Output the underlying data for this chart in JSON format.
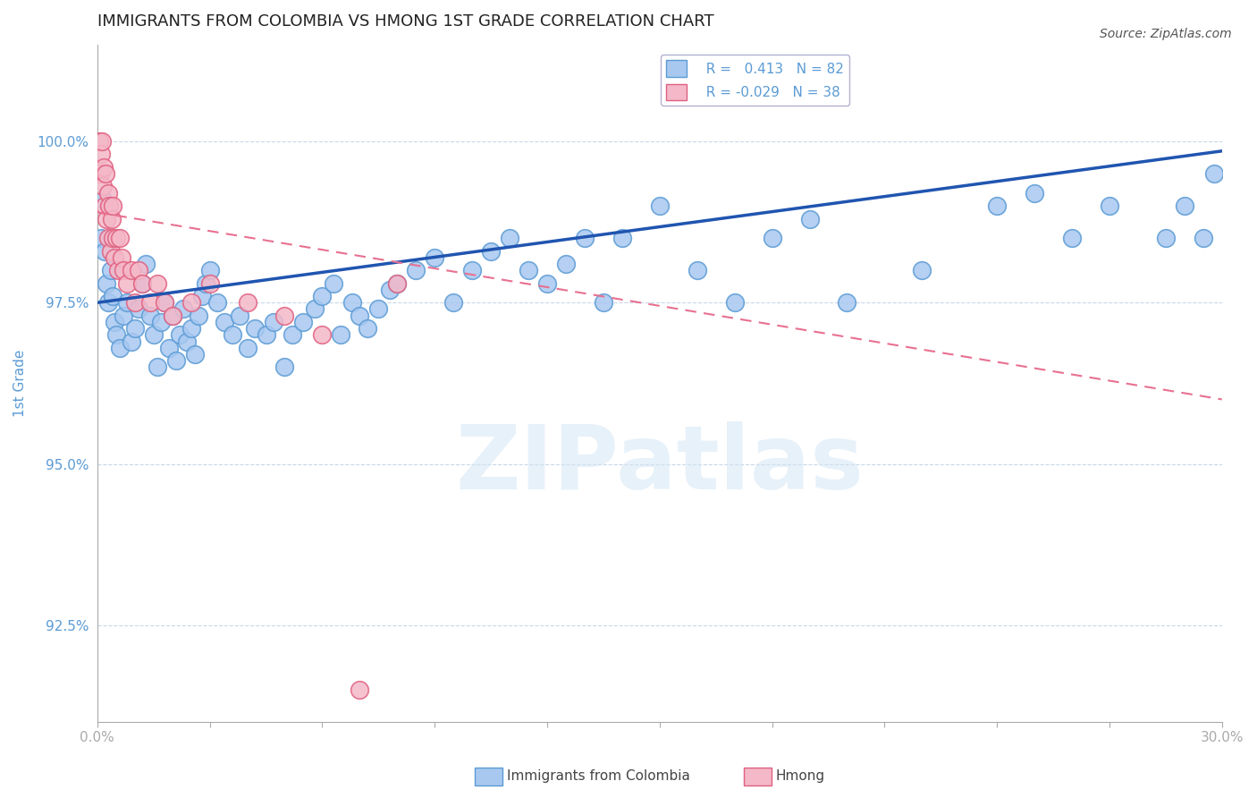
{
  "title": "IMMIGRANTS FROM COLOMBIA VS HMONG 1ST GRADE CORRELATION CHART",
  "source_text": "Source: ZipAtlas.com",
  "ylabel": "1st Grade",
  "xlim": [
    0.0,
    30.0
  ],
  "ylim": [
    91.0,
    101.5
  ],
  "yticks": [
    92.5,
    95.0,
    97.5,
    100.0
  ],
  "ytick_labels": [
    "92.5%",
    "95.0%",
    "97.5%",
    "100.0%"
  ],
  "xticks": [
    0.0,
    3.0,
    6.0,
    9.0,
    12.0,
    15.0,
    18.0,
    21.0,
    24.0,
    27.0,
    30.0
  ],
  "colombia_color": "#a8c8f0",
  "colombia_edge_color": "#5b9bd5",
  "hmong_color": "#f4b8c8",
  "hmong_edge_color": "#e06080",
  "trend_colombia_color": "#2055b0",
  "trend_hmong_color": "#e87090",
  "colombia_R": 0.413,
  "colombia_N": 82,
  "hmong_R": -0.029,
  "hmong_N": 38,
  "colombia_x": [
    0.1,
    0.15,
    0.2,
    0.25,
    0.3,
    0.35,
    0.4,
    0.45,
    0.5,
    0.6,
    0.7,
    0.8,
    0.9,
    1.0,
    1.1,
    1.2,
    1.3,
    1.4,
    1.5,
    1.6,
    1.7,
    1.8,
    1.9,
    2.0,
    2.1,
    2.2,
    2.3,
    2.4,
    2.5,
    2.6,
    2.7,
    2.8,
    2.9,
    3.0,
    3.2,
    3.4,
    3.6,
    3.8,
    4.0,
    4.2,
    4.5,
    4.7,
    5.0,
    5.2,
    5.5,
    5.8,
    6.0,
    6.3,
    6.5,
    6.8,
    7.0,
    7.2,
    7.5,
    7.8,
    8.0,
    8.5,
    9.0,
    9.5,
    10.0,
    10.5,
    11.0,
    11.5,
    12.0,
    12.5,
    13.0,
    13.5,
    14.0,
    15.0,
    16.0,
    17.0,
    18.0,
    19.0,
    20.0,
    22.0,
    24.0,
    25.0,
    26.0,
    27.0,
    28.5,
    29.0,
    29.5,
    29.8
  ],
  "colombia_y": [
    98.5,
    99.1,
    98.3,
    97.8,
    97.5,
    98.0,
    97.6,
    97.2,
    97.0,
    96.8,
    97.3,
    97.5,
    96.9,
    97.1,
    97.4,
    97.8,
    98.1,
    97.3,
    97.0,
    96.5,
    97.2,
    97.5,
    96.8,
    97.3,
    96.6,
    97.0,
    97.4,
    96.9,
    97.1,
    96.7,
    97.3,
    97.6,
    97.8,
    98.0,
    97.5,
    97.2,
    97.0,
    97.3,
    96.8,
    97.1,
    97.0,
    97.2,
    96.5,
    97.0,
    97.2,
    97.4,
    97.6,
    97.8,
    97.0,
    97.5,
    97.3,
    97.1,
    97.4,
    97.7,
    97.8,
    98.0,
    98.2,
    97.5,
    98.0,
    98.3,
    98.5,
    98.0,
    97.8,
    98.1,
    98.5,
    97.5,
    98.5,
    99.0,
    98.0,
    97.5,
    98.5,
    98.8,
    97.5,
    98.0,
    99.0,
    99.2,
    98.5,
    99.0,
    98.5,
    99.0,
    98.5,
    99.5
  ],
  "hmong_x": [
    0.05,
    0.08,
    0.1,
    0.12,
    0.15,
    0.18,
    0.2,
    0.22,
    0.25,
    0.28,
    0.3,
    0.32,
    0.35,
    0.38,
    0.4,
    0.42,
    0.45,
    0.5,
    0.55,
    0.6,
    0.65,
    0.7,
    0.8,
    0.9,
    1.0,
    1.1,
    1.2,
    1.4,
    1.6,
    1.8,
    2.0,
    2.5,
    3.0,
    4.0,
    5.0,
    6.0,
    7.0,
    8.0
  ],
  "hmong_y": [
    100.0,
    99.5,
    99.8,
    100.0,
    99.3,
    99.6,
    99.0,
    99.5,
    98.8,
    99.2,
    98.5,
    99.0,
    98.3,
    98.8,
    98.5,
    99.0,
    98.2,
    98.5,
    98.0,
    98.5,
    98.2,
    98.0,
    97.8,
    98.0,
    97.5,
    98.0,
    97.8,
    97.5,
    97.8,
    97.5,
    97.3,
    97.5,
    97.8,
    97.5,
    97.3,
    97.0,
    91.5,
    97.8
  ],
  "watermark": "ZIPatlas",
  "background_color": "#ffffff",
  "grid_color": "#c8d8e8",
  "title_color": "#222222",
  "axis_label_color": "#5b9bd5",
  "tick_color": "#5b9bd5"
}
